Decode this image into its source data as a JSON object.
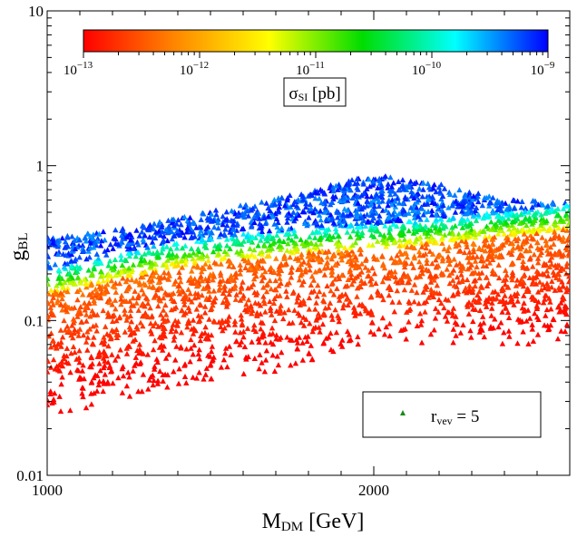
{
  "chart_data": {
    "type": "scatter",
    "title": "",
    "xlabel": {
      "main": "M",
      "sub": "DM",
      "rest": " [GeV]"
    },
    "ylabel": {
      "main": "g",
      "sub": "BL"
    },
    "x_scale": "linear",
    "y_scale": "log",
    "xlim": [
      1000,
      2600
    ],
    "ylim": [
      0.01,
      10
    ],
    "x_ticks": [
      {
        "value": 1000,
        "label": "1000"
      },
      {
        "value": 2000,
        "label": "2000"
      }
    ],
    "y_ticks": [
      {
        "value": 0.01,
        "label": "0.01"
      },
      {
        "value": 0.1,
        "label": "0.1"
      },
      {
        "value": 1,
        "label": "1"
      },
      {
        "value": 10,
        "label": "10"
      }
    ],
    "grid": false,
    "marker": "triangle",
    "legend": {
      "placement": "bottom-right",
      "marker_color": "#1a8a1a",
      "label": {
        "main": "r",
        "sub": "vev",
        "rest": " = 5"
      }
    },
    "colorbar": {
      "placement": "top",
      "scale": "log",
      "range_pb": [
        1e-13,
        1e-09
      ],
      "colors": [
        "#ff0000",
        "#ff8800",
        "#ffff00",
        "#00dd00",
        "#00ffff",
        "#0000ff"
      ],
      "ticks": [
        {
          "value": 1e-13,
          "base": "10",
          "exp": "−13"
        },
        {
          "value": 1e-12,
          "base": "10",
          "exp": "−12"
        },
        {
          "value": 1e-11,
          "base": "10",
          "exp": "−11"
        },
        {
          "value": 1e-10,
          "base": "10",
          "exp": "−10"
        },
        {
          "value": 1e-09,
          "base": "10",
          "exp": "−9"
        }
      ],
      "label": {
        "main": "σ",
        "sub": "SI",
        "rest": " [pb]"
      }
    },
    "series": [
      {
        "name": "r_vev = 5",
        "upper_boundary": [
          [
            1000,
            0.34
          ],
          [
            1200,
            0.38
          ],
          [
            1400,
            0.46
          ],
          [
            1600,
            0.56
          ],
          [
            1800,
            0.68
          ],
          [
            1900,
            0.78
          ],
          [
            2000,
            0.88
          ],
          [
            2200,
            0.76
          ],
          [
            2400,
            0.6
          ],
          [
            2600,
            0.58
          ]
        ],
        "lower_boundary": [
          [
            1000,
            0.022
          ],
          [
            1100,
            0.025
          ],
          [
            1200,
            0.028
          ],
          [
            1400,
            0.034
          ],
          [
            1600,
            0.042
          ],
          [
            1800,
            0.052
          ],
          [
            1900,
            0.062
          ],
          [
            2000,
            0.07
          ],
          [
            2200,
            0.068
          ],
          [
            2400,
            0.066
          ],
          [
            2600,
            0.07
          ]
        ],
        "sigma_transition": [
          [
            1000,
            0.18
          ],
          [
            1200,
            0.22
          ],
          [
            1400,
            0.27
          ],
          [
            1600,
            0.3
          ],
          [
            1800,
            0.33
          ],
          [
            2000,
            0.35
          ],
          [
            2200,
            0.38
          ],
          [
            2400,
            0.42
          ],
          [
            2600,
            0.47
          ]
        ],
        "approx_point_count": 3400
      }
    ]
  }
}
